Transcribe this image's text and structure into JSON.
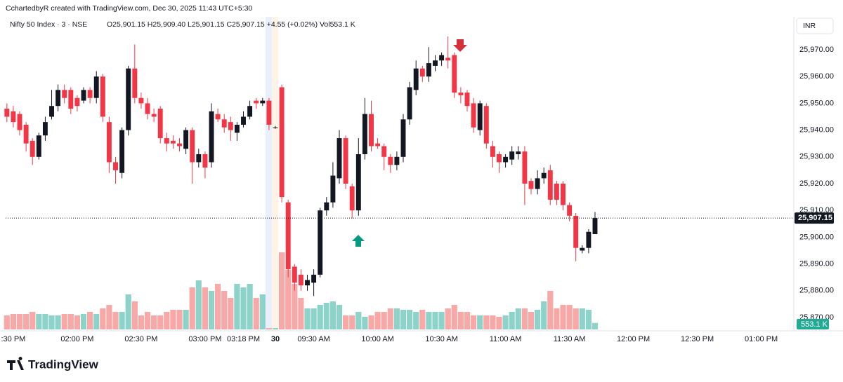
{
  "attribution": "CchartedbyR created with TradingView.com, Dec 30, 2025 11:43 UTC+5:30",
  "logo": "TradingView",
  "chart_data": {
    "type": "candlestick",
    "title": "Nifty 50 Index · 3 · NSE",
    "subtitle": "O25,901.15 H25,909.40 L25,901.15 C25,907.15 +4.55 (+0.02%) Vol553.1 K",
    "currency": "INR",
    "up_color": "#131722",
    "down_color": "#f23645",
    "volume_up_color": "#8dd3ca",
    "volume_down_color": "#f7a8a7",
    "open": [
      25948,
      25947,
      25946,
      25942,
      25936,
      25930,
      25938,
      25945,
      25949,
      25955,
      25955,
      25952,
      25951,
      25955,
      25952,
      25960,
      25943,
      25928,
      25924,
      25940,
      25963,
      25952,
      25950,
      25946,
      25948,
      25937,
      25936,
      25935,
      25933,
      25940,
      25928,
      25931,
      25928,
      25946,
      25944,
      25943,
      25939,
      25942,
      25945,
      25951,
      25950,
      25951,
      25941,
      25956,
      25913,
      25889,
      25886,
      25882,
      25883,
      25886,
      25910,
      25913,
      25922,
      25937,
      25919,
      25910,
      25931,
      25946,
      25935,
      25934,
      25930,
      25927,
      25930,
      25944,
      25955,
      25963,
      25960,
      25964,
      25966,
      25967,
      25968,
      25954,
      25954,
      25950,
      25940,
      25949,
      25934,
      25931,
      25928,
      25929,
      25931,
      25932,
      25921,
      25918,
      25922,
      25925,
      25920,
      25920,
      25912,
      25908,
      25895,
      25896,
      25901.15
    ],
    "high": [
      25950,
      25949,
      25947,
      25943,
      25937,
      25939,
      25945,
      25955,
      25957,
      25957,
      25956,
      25953,
      25956,
      25956,
      25962,
      25961,
      25945,
      25930,
      25941,
      25964,
      25972,
      25954,
      25952,
      25948,
      25949,
      25939,
      25938,
      25937,
      25941,
      25941,
      25933,
      25932,
      25950,
      25948,
      25946,
      25945,
      25943,
      25947,
      25951,
      25952,
      25952,
      25952,
      25941.5,
      25957,
      25914,
      25890,
      25888,
      25886,
      25888,
      25911,
      25915,
      25928,
      25940,
      25938,
      25920,
      25937,
      25952,
      25951,
      25937,
      25935,
      25931,
      25932,
      25946,
      25958,
      25966,
      25964,
      25971,
      25968,
      25969,
      25975,
      25969,
      25956,
      25955,
      25952,
      25951,
      25950,
      25936,
      25932,
      25931,
      25934,
      25934,
      25934,
      25922,
      25925,
      25926,
      25927,
      25921,
      25921,
      25913,
      25909,
      25897,
      25903,
      25909.4
    ],
    "low": [
      25943,
      25941,
      25938,
      25932,
      25927,
      25929,
      25936,
      25944,
      25947,
      25950,
      25946,
      25947,
      25950,
      25950,
      25950,
      25943,
      25924,
      25920,
      25922,
      25938,
      25950,
      25948,
      25944,
      25943,
      25935,
      25932,
      25933,
      25932,
      25931,
      25920,
      25926,
      25922,
      25926,
      25943,
      25939,
      25936,
      25936,
      25941,
      25944,
      25948,
      25949,
      25940,
      25940.5,
      25913,
      25885,
      25880,
      25880,
      25880,
      25878,
      25885,
      25908,
      25911,
      25920,
      25918,
      25907,
      25908,
      25929,
      25932,
      25933,
      25925,
      25924,
      25925,
      25928,
      25942,
      25953,
      25958,
      25958,
      25962,
      25964,
      25963,
      25952,
      25950,
      25947,
      25939,
      25938,
      25933,
      25926,
      25924,
      25926,
      25927,
      25929,
      25912,
      25916,
      25916,
      25920,
      25912,
      25912,
      25910,
      25906,
      25891,
      25894,
      25894,
      25901.15
    ],
    "close": [
      25945,
      25943,
      25940,
      25935,
      25930,
      25938,
      25943,
      25949,
      25955,
      25952,
      25948,
      25949,
      25955,
      25952,
      25960,
      25945,
      25928,
      25925,
      25940,
      25963,
      25952,
      25950,
      25946,
      25945,
      25937,
      25935,
      25935,
      25934,
      25940,
      25928,
      25931,
      25926,
      25947,
      25944,
      25941,
      25940,
      25942,
      25945,
      25949,
      25950,
      25951,
      25942,
      25941,
      25915,
      25888,
      25883,
      25882,
      25884,
      25886,
      25910,
      25913,
      25923,
      25937,
      25920,
      25910,
      25931,
      25946,
      25934,
      25934,
      25930,
      25927,
      25930,
      25944,
      25956,
      25963,
      25960,
      25965,
      25966,
      25968,
      25966,
      25954,
      25953,
      25949,
      25941,
      25950,
      25935,
      25930,
      25928,
      25930,
      25932,
      25932,
      25920,
      25918,
      25922,
      25924,
      25914,
      25914,
      25912,
      25908,
      25896,
      25896,
      25902,
      25907.15
    ],
    "volume": [
      1200,
      1320,
      1320,
      1320,
      1500,
      1320,
      1320,
      1200,
      1200,
      1320,
      1320,
      1200,
      1320,
      1500,
      1320,
      1800,
      2100,
      1500,
      1500,
      3000,
      2400,
      1200,
      1500,
      1200,
      1200,
      1500,
      1680,
      1680,
      1680,
      3600,
      4200,
      3600,
      3300,
      3900,
      3300,
      2700,
      3900,
      3600,
      3900,
      2700,
      3000,
      120,
      120,
      6600,
      5100,
      3900,
      2700,
      1800,
      1800,
      2100,
      2280,
      2400,
      2100,
      1200,
      1200,
      1500,
      1080,
      1200,
      1500,
      1500,
      1800,
      1800,
      1680,
      1680,
      1500,
      1680,
      1500,
      1500,
      1500,
      1800,
      2100,
      1500,
      1500,
      1200,
      1200,
      1200,
      1200,
      1080,
      1200,
      1500,
      1800,
      1800,
      1500,
      1680,
      2400,
      3300,
      1800,
      2100,
      2100,
      1800,
      1800,
      1680,
      553.1
    ],
    "volume_value_labels": {
      "92": "553.1 K"
    },
    "last_price": {
      "value": 25907.15,
      "label": "25,907.15"
    },
    "xlim": [
      -0.2,
      123.1
    ],
    "xticks": [
      {
        "value": 1,
        "label": ":30 PM"
      },
      {
        "value": 11,
        "label": "02:00 PM"
      },
      {
        "value": 21,
        "label": "02:30 PM"
      },
      {
        "value": 31,
        "label": "03:00 PM"
      },
      {
        "value": 37,
        "label": "03:18 PM"
      },
      {
        "value": 42,
        "label": "30"
      },
      {
        "value": 48,
        "label": "09:30 AM"
      },
      {
        "value": 58,
        "label": "10:00 AM"
      },
      {
        "value": 68,
        "label": "10:30 AM"
      },
      {
        "value": 78,
        "label": "11:00 AM"
      },
      {
        "value": 88,
        "label": "11:30 AM"
      },
      {
        "value": 98,
        "label": "12:00 PM"
      },
      {
        "value": 108,
        "label": "12:30 PM"
      },
      {
        "value": 118,
        "label": "01:00 PM"
      }
    ],
    "ylim": [
      25865.55,
      25980.73
    ],
    "yticks": [
      {
        "value": 25870,
        "label": "25,870.00"
      },
      {
        "value": 25880,
        "label": "25,880.00"
      },
      {
        "value": 25890,
        "label": "25,890.00"
      },
      {
        "value": 25900,
        "label": "25,900.00"
      },
      {
        "value": 25910,
        "label": "25,910.00"
      },
      {
        "value": 25920,
        "label": "25,920.00"
      },
      {
        "value": 25930,
        "label": "25,930.00"
      },
      {
        "value": 25940,
        "label": "25,940.00"
      },
      {
        "value": 25950,
        "label": "25,950.00"
      },
      {
        "value": 25960,
        "label": "25,960.00"
      },
      {
        "value": 25970,
        "label": "25,970.00"
      }
    ]
  }
}
